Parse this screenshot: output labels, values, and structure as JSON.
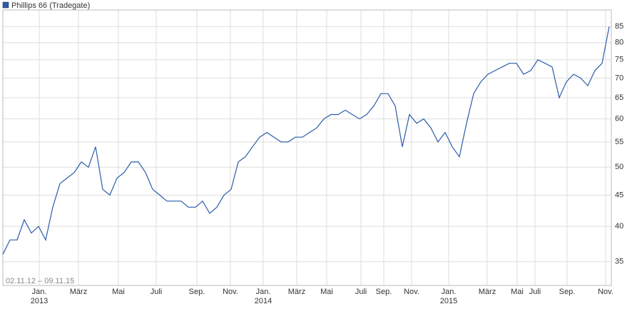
{
  "chart_data": {
    "type": "line",
    "legend_label": "Phillips 66 (Tradegate)",
    "date_range": "02.11.12 – 09.11.15",
    "color": "#2a5caa",
    "log_scale": true,
    "grid": true,
    "values": [
      36,
      38,
      38,
      41,
      39,
      40,
      38,
      43,
      47,
      48,
      49,
      51,
      50,
      54,
      46,
      45,
      48,
      49,
      51,
      51,
      49,
      46,
      45,
      44,
      44,
      44,
      43,
      43,
      44,
      42,
      43,
      45,
      46,
      51,
      52,
      54,
      56,
      57,
      56,
      55,
      55,
      56,
      56,
      57,
      58,
      60,
      61,
      61,
      62,
      61,
      60,
      61,
      63,
      66,
      66,
      63,
      54,
      61,
      59,
      60,
      58,
      55,
      57,
      54,
      52,
      59,
      66,
      69,
      71,
      72,
      73,
      74,
      74,
      71,
      72,
      75,
      74,
      73,
      65,
      69,
      71,
      70,
      68,
      72,
      74,
      85
    ],
    "xlim": [
      0,
      85.3
    ],
    "xticks": [
      {
        "value": 5.1,
        "label": "Jan."
      },
      {
        "value": 10.6,
        "label": "März"
      },
      {
        "value": 16.2,
        "label": "Mai"
      },
      {
        "value": 21.5,
        "label": "Juli"
      },
      {
        "value": 27.2,
        "label": "Sep."
      },
      {
        "value": 31.9,
        "label": "Nov."
      },
      {
        "value": 36.5,
        "label": "Jan."
      },
      {
        "value": 41.2,
        "label": "März"
      },
      {
        "value": 45.4,
        "label": "Mai"
      },
      {
        "value": 50.2,
        "label": "Juli"
      },
      {
        "value": 53.4,
        "label": "Sep."
      },
      {
        "value": 57.3,
        "label": "Nov."
      },
      {
        "value": 62.5,
        "label": "Jan."
      },
      {
        "value": 67.9,
        "label": "März"
      },
      {
        "value": 72.1,
        "label": "Mai"
      },
      {
        "value": 74.6,
        "label": "Juli"
      },
      {
        "value": 79.1,
        "label": "Sep."
      },
      {
        "value": 84.5,
        "label": "Nov."
      }
    ],
    "x_year_labels": [
      {
        "value": 5.1,
        "label": "2013"
      },
      {
        "value": 36.5,
        "label": "2014"
      },
      {
        "value": 62.5,
        "label": "2015"
      }
    ],
    "ylim": [
      32,
      90.5
    ],
    "yticks": [
      35,
      40,
      45,
      50,
      55,
      60,
      65,
      70,
      75,
      80,
      85
    ]
  }
}
